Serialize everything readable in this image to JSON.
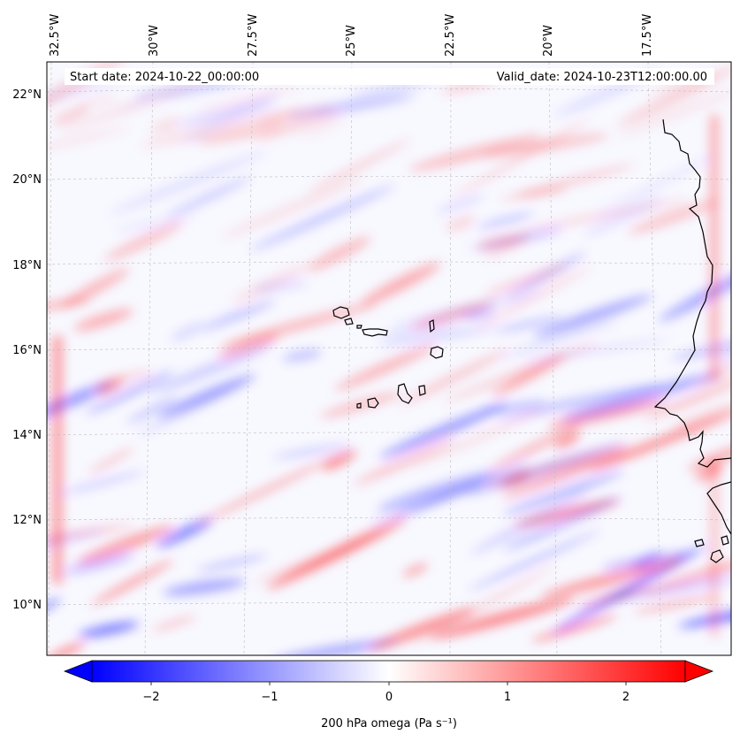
{
  "header": {
    "start_date": "Start date: 2024-10-22_00:00:00",
    "valid_date": "Valid_date: 2024-10-23T12:00:00.00"
  },
  "map": {
    "lon_labels": [
      "32.5°W",
      "30°W",
      "27.5°W",
      "25°W",
      "22.5°W",
      "20°W",
      "17.5°W"
    ],
    "lat_labels": [
      "22°N",
      "20°N",
      "18°N",
      "16°N",
      "14°N",
      "12°N",
      "10°N"
    ],
    "field": "200 hPa omega",
    "coastline_color": "#000000",
    "gridline_color": "#bdbdbd"
  },
  "colorbar": {
    "label": "200 hPa omega (Pa s⁻¹)",
    "ticks": [
      "−2",
      "−1",
      "0",
      "1",
      "2"
    ],
    "vmin": -2.5,
    "vmax": 2.5,
    "colors": {
      "low": "#0000ff",
      "mid": "#ffffff",
      "high": "#ff0000"
    },
    "extend": "both"
  }
}
